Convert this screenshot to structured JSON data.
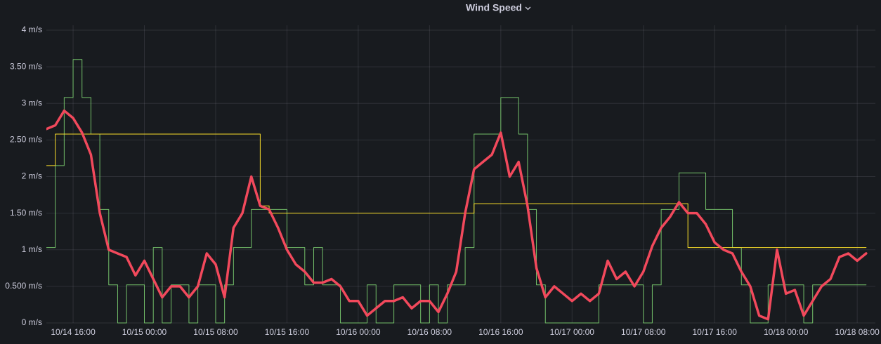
{
  "chart_data": {
    "type": "line",
    "title": "Wind Speed",
    "x": [
      "10/14 13:00",
      "10/14 14:00",
      "10/14 15:00",
      "10/14 16:00",
      "10/14 17:00",
      "10/14 18:00",
      "10/14 19:00",
      "10/14 20:00",
      "10/14 21:00",
      "10/14 22:00",
      "10/14 23:00",
      "10/15 00:00",
      "10/15 01:00",
      "10/15 02:00",
      "10/15 03:00",
      "10/15 04:00",
      "10/15 05:00",
      "10/15 06:00",
      "10/15 07:00",
      "10/15 08:00",
      "10/15 09:00",
      "10/15 10:00",
      "10/15 11:00",
      "10/15 12:00",
      "10/15 13:00",
      "10/15 14:00",
      "10/15 15:00",
      "10/15 16:00",
      "10/15 17:00",
      "10/15 18:00",
      "10/15 19:00",
      "10/15 20:00",
      "10/15 21:00",
      "10/15 22:00",
      "10/15 23:00",
      "10/16 00:00",
      "10/16 01:00",
      "10/16 02:00",
      "10/16 03:00",
      "10/16 04:00",
      "10/16 05:00",
      "10/16 06:00",
      "10/16 07:00",
      "10/16 08:00",
      "10/16 09:00",
      "10/16 10:00",
      "10/16 11:00",
      "10/16 12:00",
      "10/16 13:00",
      "10/16 14:00",
      "10/16 15:00",
      "10/16 16:00",
      "10/16 17:00",
      "10/16 18:00",
      "10/16 19:00",
      "10/16 20:00",
      "10/16 21:00",
      "10/16 22:00",
      "10/16 23:00",
      "10/17 00:00",
      "10/17 01:00",
      "10/17 02:00",
      "10/17 03:00",
      "10/17 04:00",
      "10/17 05:00",
      "10/17 06:00",
      "10/17 07:00",
      "10/17 08:00",
      "10/17 09:00",
      "10/17 10:00",
      "10/17 11:00",
      "10/17 12:00",
      "10/17 13:00",
      "10/17 14:00",
      "10/17 15:00",
      "10/17 16:00",
      "10/17 17:00",
      "10/17 18:00",
      "10/17 19:00",
      "10/17 20:00",
      "10/17 21:00",
      "10/17 22:00",
      "10/17 23:00",
      "10/18 00:00",
      "10/18 01:00",
      "10/18 02:00",
      "10/18 03:00",
      "10/18 04:00",
      "10/18 05:00",
      "10/18 06:00",
      "10/18 07:00",
      "10/18 08:00",
      "10/18 09:00"
    ],
    "xlim": [
      "10/14 13:00",
      "10/18 10:00"
    ],
    "xticks": [
      "10/14 16:00",
      "10/15 00:00",
      "10/15 08:00",
      "10/15 16:00",
      "10/16 00:00",
      "10/16 08:00",
      "10/16 16:00",
      "10/17 00:00",
      "10/17 08:00",
      "10/17 16:00",
      "10/18 00:00",
      "10/18 08:00"
    ],
    "ylim": [
      0,
      4
    ],
    "yticks": [
      {
        "value": 0,
        "label": "0 m/s"
      },
      {
        "value": 0.5,
        "label": "0.500 m/s"
      },
      {
        "value": 1,
        "label": "1 m/s"
      },
      {
        "value": 1.5,
        "label": "1.50 m/s"
      },
      {
        "value": 2,
        "label": "2 m/s"
      },
      {
        "value": 2.5,
        "label": "2.50 m/s"
      },
      {
        "value": 3,
        "label": "3 m/s"
      },
      {
        "value": 3.5,
        "label": "3.50 m/s"
      },
      {
        "value": 4,
        "label": "4 m/s"
      }
    ],
    "grid": true,
    "series": [
      {
        "color": "#73bf69",
        "step": true,
        "width": 1,
        "values": [
          1.03,
          2.15,
          3.08,
          3.6,
          3.08,
          2.58,
          1.55,
          0.52,
          0,
          0.52,
          0.52,
          0,
          1.03,
          0,
          0.52,
          0.52,
          0,
          0.52,
          0.52,
          0,
          0.52,
          1.03,
          1.03,
          1.55,
          1.55,
          1.55,
          1.55,
          1.03,
          1.03,
          0.52,
          1.03,
          0.52,
          0.52,
          0,
          0,
          0,
          0.52,
          0,
          0,
          0.52,
          0.52,
          0.52,
          0,
          0.52,
          0,
          0.52,
          0.52,
          1.03,
          2.58,
          2.58,
          2.58,
          3.08,
          3.08,
          2.58,
          1.55,
          0.52,
          0,
          0,
          0,
          0,
          0,
          0,
          0.52,
          0.52,
          0.52,
          0.52,
          0.52,
          0,
          0.52,
          1.55,
          1.55,
          2.05,
          2.05,
          2.05,
          1.55,
          1.55,
          1.55,
          1.03,
          0.52,
          0,
          0,
          0.52,
          0.52,
          0.52,
          0.52,
          0,
          0.52,
          0.52,
          0.52,
          0.52,
          0.52,
          0.52,
          0.52
        ]
      },
      {
        "color": "#fade2a",
        "step": true,
        "width": 1,
        "values": [
          2.15,
          2.58,
          2.58,
          2.58,
          2.58,
          2.58,
          2.58,
          2.58,
          2.58,
          2.58,
          2.58,
          2.58,
          2.58,
          2.58,
          2.58,
          2.58,
          2.58,
          2.58,
          2.58,
          2.58,
          2.58,
          2.58,
          2.58,
          2.58,
          1.6,
          1.5,
          1.5,
          1.5,
          1.5,
          1.5,
          1.5,
          1.5,
          1.5,
          1.5,
          1.5,
          1.5,
          1.5,
          1.5,
          1.5,
          1.5,
          1.5,
          1.5,
          1.5,
          1.5,
          1.5,
          1.5,
          1.5,
          1.5,
          1.63,
          1.63,
          1.63,
          1.63,
          1.63,
          1.63,
          1.63,
          1.63,
          1.63,
          1.63,
          1.63,
          1.63,
          1.63,
          1.63,
          1.63,
          1.63,
          1.63,
          1.63,
          1.63,
          1.63,
          1.63,
          1.63,
          1.63,
          1.63,
          1.03,
          1.03,
          1.03,
          1.03,
          1.03,
          1.03,
          1.03,
          1.03,
          1.03,
          1.03,
          1.03,
          1.03,
          1.03,
          1.03,
          1.03,
          1.03,
          1.03,
          1.03,
          1.03,
          1.03,
          1.03
        ]
      },
      {
        "color": "#f2495c",
        "step": false,
        "width": 3.5,
        "values": [
          2.65,
          2.7,
          2.9,
          2.8,
          2.6,
          2.3,
          1.5,
          1.0,
          0.95,
          0.9,
          0.65,
          0.85,
          0.6,
          0.35,
          0.5,
          0.5,
          0.35,
          0.5,
          0.95,
          0.8,
          0.35,
          1.3,
          1.5,
          2.0,
          1.6,
          1.55,
          1.3,
          1.0,
          0.8,
          0.7,
          0.55,
          0.55,
          0.6,
          0.5,
          0.3,
          0.3,
          0.1,
          0.2,
          0.3,
          0.3,
          0.35,
          0.2,
          0.3,
          0.3,
          0.15,
          0.4,
          0.7,
          1.5,
          2.1,
          2.2,
          2.3,
          2.6,
          2.0,
          2.2,
          1.6,
          0.75,
          0.35,
          0.5,
          0.4,
          0.3,
          0.4,
          0.3,
          0.4,
          0.85,
          0.6,
          0.7,
          0.5,
          0.7,
          1.05,
          1.3,
          1.45,
          1.65,
          1.5,
          1.5,
          1.35,
          1.1,
          1.0,
          0.95,
          0.7,
          0.5,
          0.1,
          0.05,
          1.0,
          0.4,
          0.45,
          0.1,
          0.3,
          0.5,
          0.6,
          0.9,
          0.95,
          0.85,
          0.95
        ]
      }
    ]
  }
}
